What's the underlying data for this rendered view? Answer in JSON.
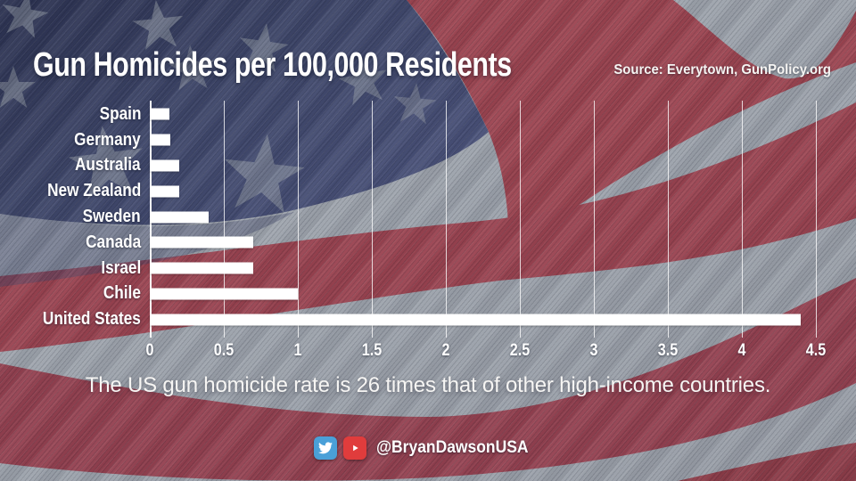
{
  "header": {
    "title": "Gun Homicides per 100,000 Residents",
    "source": "Source: Everytown, GunPolicy.org"
  },
  "chart_data": {
    "type": "bar",
    "orientation": "horizontal",
    "title": "Gun Homicides per 100,000 Residents",
    "categories": [
      "Spain",
      "Germany",
      "Australia",
      "New Zealand",
      "Sweden",
      "Canada",
      "Israel",
      "Chile",
      "United States"
    ],
    "values": [
      0.13,
      0.14,
      0.2,
      0.2,
      0.4,
      0.7,
      0.7,
      1.0,
      4.4
    ],
    "xlabel": "",
    "ylabel": "",
    "xlim": [
      0,
      4.5
    ],
    "xticks": [
      0,
      0.5,
      1,
      1.5,
      2,
      2.5,
      3,
      3.5,
      4,
      4.5
    ],
    "xtick_labels": [
      "0",
      "0.5",
      "1",
      "1.5",
      "2",
      "2.5",
      "3",
      "3.5",
      "4",
      "4.5"
    ],
    "grid": true,
    "legend": false,
    "bar_color": "#ffffff"
  },
  "caption": {
    "text": "The US gun homicide rate is 26 times that of other high-income countries."
  },
  "footer": {
    "handle": "@BryanDawsonUSA",
    "twitter_color": "#4AA0D8",
    "youtube_color": "#E03C3C"
  },
  "flag_colors": {
    "canton": "#3D4568",
    "stripe_red": "#9C4450",
    "stripe_gray": "#9CA2AB",
    "star": "#9299A4"
  }
}
